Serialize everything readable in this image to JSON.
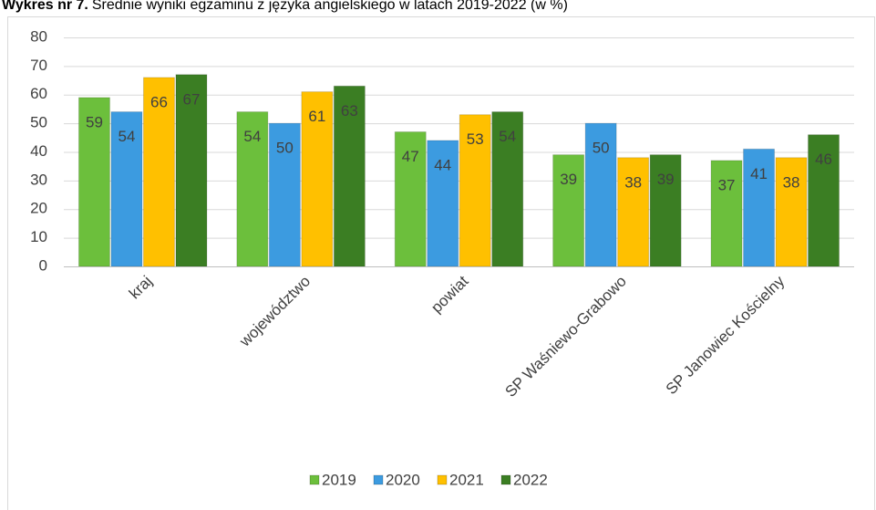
{
  "chart_data": {
    "type": "bar",
    "title_label": "Wykres nr 7.",
    "title": "Średnie wyniki egzaminu z języka angielskiego w latach 2019-2022 (w %)",
    "categories": [
      "kraj",
      "województwo",
      "powiat",
      "SP Waśniewo-Grabowo",
      "SP Janowiec Kościelny"
    ],
    "series": [
      {
        "name": "2019",
        "color": "#6cbf3c",
        "values": [
          59,
          54,
          47,
          39,
          37
        ]
      },
      {
        "name": "2020",
        "color": "#3c9be0",
        "values": [
          54,
          50,
          44,
          50,
          41
        ]
      },
      {
        "name": "2021",
        "color": "#ffc000",
        "values": [
          66,
          61,
          53,
          38,
          38
        ]
      },
      {
        "name": "2022",
        "color": "#3b7e23",
        "values": [
          67,
          63,
          54,
          39,
          46
        ]
      }
    ],
    "ylim": [
      0,
      80
    ],
    "yticks": [
      0,
      10,
      20,
      30,
      40,
      50,
      60,
      70,
      80
    ],
    "grid": true,
    "legend": "bottom"
  }
}
